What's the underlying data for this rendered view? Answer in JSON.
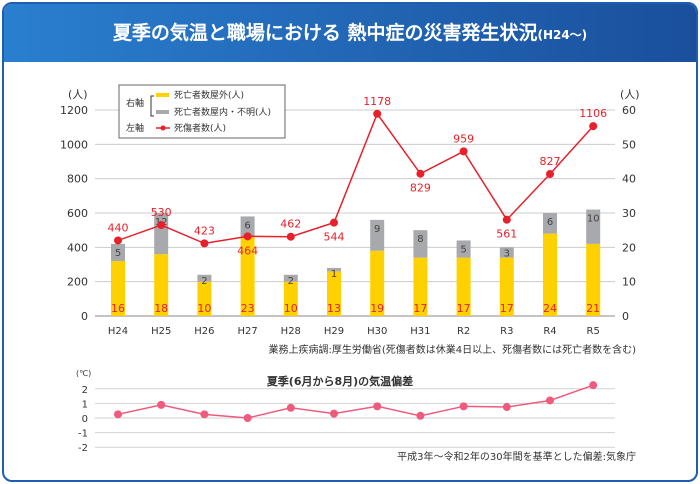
{
  "header": {
    "title": "夏季の気温と職場における 熱中症の災害発生状況",
    "title_suffix": "(H24〜)"
  },
  "chart_data": [
    {
      "type": "bar+line",
      "left_unit": "(人)",
      "right_unit": "(人)",
      "left_ylim": [
        0,
        1200
      ],
      "left_ticks": [
        "0",
        "200",
        "400",
        "600",
        "800",
        "1000",
        "1200"
      ],
      "right_ylim": [
        0,
        60
      ],
      "right_ticks": [
        "0",
        "10",
        "20",
        "30",
        "40",
        "50",
        "60"
      ],
      "categories": [
        "H24",
        "H25",
        "H26",
        "H27",
        "H28",
        "H29",
        "H30",
        "H31",
        "R2",
        "R3",
        "R4",
        "R5"
      ],
      "legend": {
        "right_axis_label": "右軸",
        "left_axis_label": "左軸"
      },
      "series": [
        {
          "name": "死亡者数屋外(人)",
          "axis": "right",
          "kind": "stacked-bar",
          "color": "#ffd100",
          "values": [
            16,
            18,
            10,
            23,
            10,
            13,
            19,
            17,
            17,
            17,
            24,
            21
          ]
        },
        {
          "name": "死亡者数屋内・不明(人)",
          "axis": "right",
          "kind": "stacked-bar",
          "color": "#a7a9ac",
          "values": [
            5,
            12,
            2,
            6,
            2,
            1,
            9,
            8,
            5,
            3,
            6,
            10
          ]
        },
        {
          "name": "死傷者数(人)",
          "axis": "left",
          "kind": "line",
          "color": "#e8202a",
          "values": [
            440,
            530,
            423,
            464,
            462,
            544,
            1178,
            829,
            959,
            561,
            827,
            1106
          ]
        }
      ],
      "grid": true,
      "source": "業務上疾病調:厚生労働省(死傷者数は休業4日以上、死傷者数には死亡者数を含む)"
    },
    {
      "type": "line",
      "title": "夏季(6月から8月)の気温偏差",
      "unit": "(℃)",
      "ylim": [
        -2,
        2
      ],
      "ticks": [
        "-2",
        "-1",
        "0",
        "1",
        "2"
      ],
      "values": [
        0.25,
        0.9,
        0.25,
        0.0,
        0.7,
        0.3,
        0.8,
        0.15,
        0.8,
        0.75,
        1.2,
        2.25
      ],
      "color": "#ef5b7d",
      "grid": true,
      "source": "平成3年〜令和2年の30年間を基準とした偏差:気象庁"
    }
  ]
}
